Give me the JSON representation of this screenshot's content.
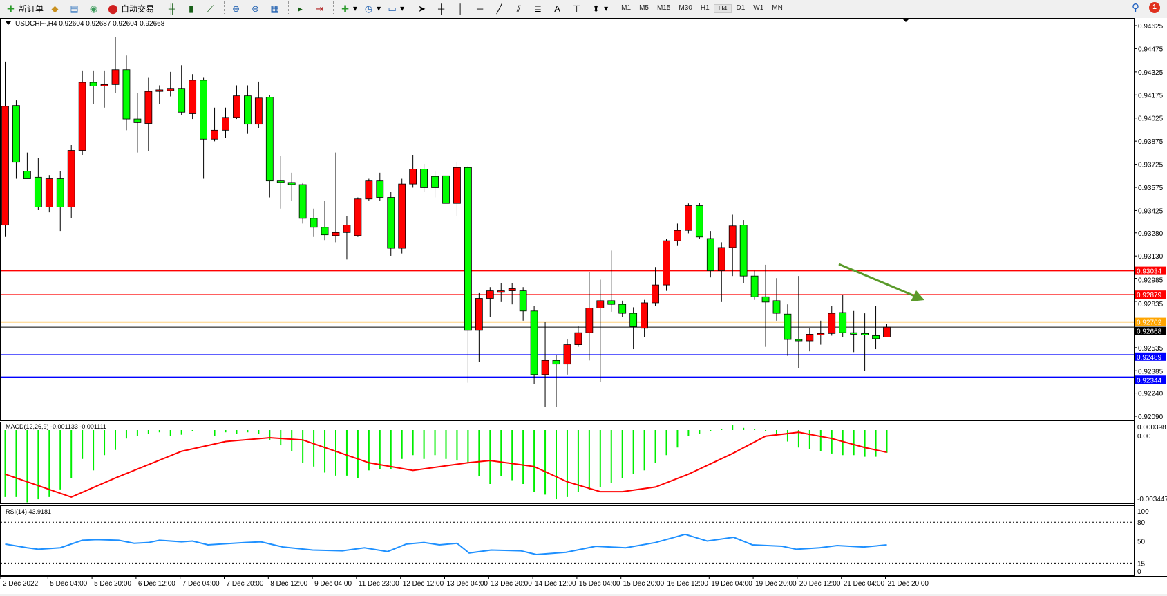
{
  "toolbar": {
    "new_order": "新订单",
    "auto_trading": "自动交易",
    "timeframes": [
      "M1",
      "M5",
      "M15",
      "M30",
      "H1",
      "H4",
      "D1",
      "W1",
      "MN"
    ],
    "active_timeframe": "H4",
    "notification_count": "1",
    "icons": [
      "new-order-icon",
      "market-watch-icon",
      "navigator-icon",
      "signal-icon",
      "auto-trading-icon",
      "bar-chart-icon",
      "candlestick-icon",
      "line-chart-icon",
      "zoom-in-icon",
      "zoom-out-icon",
      "tile-windows-icon",
      "auto-scroll-icon",
      "chart-shift-icon",
      "indicators-icon",
      "periods-icon",
      "templates-icon",
      "cursor-icon",
      "crosshair-icon",
      "vertical-line-icon",
      "horizontal-line-icon",
      "trendline-icon",
      "equidistant-channel-icon",
      "fibonacci-icon",
      "text-icon",
      "text-label-icon",
      "arrows-icon",
      "search-icon",
      "chat-icon"
    ]
  },
  "chart_data": {
    "type": "candlestick",
    "symbol_header": "USDCHF-,H4  0.92604 0.92687 0.92604 0.92668",
    "colors": {
      "bull": "#ff0000",
      "bear": "#00ff00",
      "macd_hist": "#00ee00",
      "signal": "#ff0000",
      "rsi": "#1e90ff"
    },
    "ylim": [
      0.9204,
      0.9468
    ],
    "price_ticks": [
      "0.94625",
      "0.94475",
      "0.94325",
      "0.94175",
      "0.94025",
      "0.93875",
      "0.93725",
      "0.93575",
      "0.93425",
      "0.93280",
      "0.93130",
      "0.92985",
      "0.92835",
      "0.92535",
      "0.92385",
      "0.92240",
      "0.92090"
    ],
    "time_labels": [
      "2 Dec 2022",
      "5 Dec 04:00",
      "5 Dec 20:00",
      "6 Dec 12:00",
      "7 Dec 04:00",
      "7 Dec 20:00",
      "8 Dec 12:00",
      "9 Dec 04:00",
      "11 Dec 23:00",
      "12 Dec 12:00",
      "13 Dec 04:00",
      "13 Dec 20:00",
      "14 Dec 12:00",
      "15 Dec 04:00",
      "15 Dec 20:00",
      "16 Dec 12:00",
      "19 Dec 04:00",
      "19 Dec 20:00",
      "20 Dec 12:00",
      "21 Dec 04:00",
      "21 Dec 20:00"
    ],
    "ohlc": [
      [
        0.9333,
        0.94392,
        0.93253,
        0.94101
      ],
      [
        0.94106,
        0.9414,
        0.93631,
        0.93738
      ],
      [
        0.9368,
        0.93801,
        0.93631,
        0.93631
      ],
      [
        0.93641,
        0.93767,
        0.93427,
        0.93447
      ],
      [
        0.93447,
        0.93655,
        0.93413,
        0.93631
      ],
      [
        0.93631,
        0.9368,
        0.93292,
        0.93447
      ],
      [
        0.93447,
        0.93849,
        0.93374,
        0.93815
      ],
      [
        0.93815,
        0.94334,
        0.93786,
        0.94257
      ],
      [
        0.94257,
        0.94334,
        0.94116,
        0.94232
      ],
      [
        0.94232,
        0.94334,
        0.94092,
        0.94242
      ],
      [
        0.94242,
        0.94553,
        0.94189,
        0.94339
      ],
      [
        0.94339,
        0.94431,
        0.93946,
        0.94019
      ],
      [
        0.94019,
        0.94189,
        0.93801,
        0.93995
      ],
      [
        0.9399,
        0.94286,
        0.9381,
        0.94198
      ],
      [
        0.94198,
        0.94237,
        0.94116,
        0.94208
      ],
      [
        0.94203,
        0.94325,
        0.94165,
        0.94218
      ],
      [
        0.94218,
        0.94368,
        0.94043,
        0.94063
      ],
      [
        0.94053,
        0.9431,
        0.94019,
        0.94271
      ],
      [
        0.94271,
        0.94286,
        0.93631,
        0.93888
      ],
      [
        0.93888,
        0.94092,
        0.93874,
        0.93946
      ],
      [
        0.93946,
        0.94092,
        0.93898,
        0.94029
      ],
      [
        0.94029,
        0.94237,
        0.94019,
        0.94169
      ],
      [
        0.94169,
        0.94237,
        0.93922,
        0.93985
      ],
      [
        0.93985,
        0.94262,
        0.93961,
        0.94155
      ],
      [
        0.9416,
        0.94174,
        0.9351,
        0.93617
      ],
      [
        0.93617,
        0.93777,
        0.93437,
        0.93607
      ],
      [
        0.93607,
        0.9367,
        0.93486,
        0.93593
      ],
      [
        0.93593,
        0.93607,
        0.9334,
        0.93374
      ],
      [
        0.93374,
        0.93437,
        0.93253,
        0.93316
      ],
      [
        0.93316,
        0.93486,
        0.93233,
        0.93267
      ],
      [
        0.93262,
        0.93801,
        0.93219,
        0.93282
      ],
      [
        0.93282,
        0.93389,
        0.93107,
        0.9333
      ],
      [
        0.93262,
        0.9351,
        0.93253,
        0.935
      ],
      [
        0.935,
        0.93631,
        0.93486,
        0.93617
      ],
      [
        0.93617,
        0.9367,
        0.93486,
        0.9351
      ],
      [
        0.9351,
        0.93544,
        0.93131,
        0.9318
      ],
      [
        0.9318,
        0.93631,
        0.93146,
        0.93597
      ],
      [
        0.93597,
        0.93786,
        0.93573,
        0.93694
      ],
      [
        0.93694,
        0.93728,
        0.93544,
        0.93573
      ],
      [
        0.93646,
        0.9368,
        0.9351,
        0.93573
      ],
      [
        0.9365,
        0.93675,
        0.93389,
        0.93471
      ],
      [
        0.93471,
        0.93738,
        0.93389,
        0.93704
      ],
      [
        0.93704,
        0.93713,
        0.92307,
        0.92647
      ],
      [
        0.92647,
        0.92889,
        0.92443,
        0.92855
      ],
      [
        0.92855,
        0.92928,
        0.92734,
        0.92904
      ],
      [
        0.92894,
        0.92952,
        0.92831,
        0.92904
      ],
      [
        0.92904,
        0.92952,
        0.92816,
        0.92918
      ],
      [
        0.92904,
        0.92928,
        0.9271,
        0.92773
      ],
      [
        0.92773,
        0.92807,
        0.92297,
        0.9236
      ],
      [
        0.9236,
        0.927,
        0.92152,
        0.92452
      ],
      [
        0.92452,
        0.92486,
        0.92152,
        0.92428
      ],
      [
        0.92428,
        0.92588,
        0.9236,
        0.92554
      ],
      [
        0.92554,
        0.92676,
        0.9254,
        0.92632
      ],
      [
        0.92632,
        0.93025,
        0.92452,
        0.92792
      ],
      [
        0.92792,
        0.92976,
        0.92312,
        0.9284
      ],
      [
        0.9284,
        0.93165,
        0.92768,
        0.92816
      ],
      [
        0.92816,
        0.9284,
        0.92734,
        0.92758
      ],
      [
        0.92758,
        0.92797,
        0.92525,
        0.92671
      ],
      [
        0.92661,
        0.92845,
        0.92603,
        0.92826
      ],
      [
        0.92826,
        0.93058,
        0.92807,
        0.92942
      ],
      [
        0.92942,
        0.93243,
        0.92904,
        0.93229
      ],
      [
        0.93229,
        0.9334,
        0.93195,
        0.93296
      ],
      [
        0.93296,
        0.93471,
        0.93277,
        0.93456
      ],
      [
        0.93456,
        0.93476,
        0.93243,
        0.93253
      ],
      [
        0.93243,
        0.93292,
        0.92991,
        0.93034
      ],
      [
        0.93034,
        0.93219,
        0.92831,
        0.93185
      ],
      [
        0.93185,
        0.93398,
        0.93,
        0.93325
      ],
      [
        0.9333,
        0.93364,
        0.92952,
        0.93
      ],
      [
        0.93,
        0.93034,
        0.92845,
        0.92865
      ],
      [
        0.92865,
        0.93073,
        0.9254,
        0.92831
      ],
      [
        0.9284,
        0.92986,
        0.9271,
        0.92758
      ],
      [
        0.92753,
        0.92816,
        0.92482,
        0.92588
      ],
      [
        0.92588,
        0.93,
        0.92404,
        0.92579
      ],
      [
        0.92579,
        0.92661,
        0.92511,
        0.92622
      ],
      [
        0.92617,
        0.9271,
        0.92554,
        0.92627
      ],
      [
        0.92627,
        0.92807,
        0.92613,
        0.92758
      ],
      [
        0.92763,
        0.92879,
        0.92603,
        0.92632
      ],
      [
        0.92632,
        0.92773,
        0.92506,
        0.92622
      ],
      [
        0.92627,
        0.92758,
        0.92385,
        0.92617
      ],
      [
        0.92613,
        0.92807,
        0.92525,
        0.92593
      ],
      [
        0.92604,
        0.92687,
        0.92604,
        0.92668
      ]
    ],
    "hlines": [
      {
        "price": 0.93034,
        "label": "0.93034",
        "color": "#ff0000"
      },
      {
        "price": 0.92879,
        "label": "0.92879",
        "color": "#ff0000"
      },
      {
        "price": 0.92702,
        "label": "0.92702",
        "color": "#ffa500"
      },
      {
        "price": 0.92668,
        "label": "0.92668",
        "color": "#000000"
      },
      {
        "price": 0.92489,
        "label": "0.92489",
        "color": "#0000ff"
      },
      {
        "price": 0.92344,
        "label": "0.92344",
        "color": "#0000ff"
      }
    ],
    "annotation": {
      "type": "arrow",
      "color": "#5a9a2a"
    },
    "macd": {
      "label": "MACD(12,26,9) -0.001133 -0.001111",
      "ticks": [
        "0.000398",
        "0.00",
        "-0.003447"
      ],
      "ylim": [
        -0.003447,
        0.000398
      ],
      "histogram": [
        -0.00334,
        -0.00334,
        -0.0036,
        -0.00345,
        -0.00334,
        -0.00296,
        -0.00239,
        -0.00144,
        -0.00201,
        -0.00125,
        -0.00099,
        -0.00042,
        -0.0003,
        -0.00019,
        -0.00011,
        -0.0003,
        -0.00023,
        -4e-05,
        0.0,
        -0.0003,
        -0.00011,
        -0.00019,
        -0.00011,
        -0.00019,
        -0.00049,
        -0.00076,
        -0.00106,
        -0.00163,
        -0.00182,
        -0.00212,
        -0.00227,
        -0.00227,
        -0.00239,
        -0.00201,
        -0.00193,
        -0.00193,
        -0.00144,
        -0.00125,
        -0.00144,
        -0.00125,
        -0.00144,
        -0.00152,
        -0.00163,
        -0.00231,
        -0.00269,
        -0.00231,
        -0.0025,
        -0.00269,
        -0.00307,
        -0.00322,
        -0.00345,
        -0.00334,
        -0.00307,
        -0.00299,
        -0.00284,
        -0.00262,
        -0.00239,
        -0.0022,
        -0.00201,
        -0.00163,
        -0.00125,
        -0.00087,
        -0.0003,
        -0.00019,
        -4e-05,
        4e-05,
        0.00027,
        0.00011,
        4e-05,
        -4e-05,
        -0.0003,
        -0.00057,
        -0.00087,
        -0.00095,
        -0.00106,
        -0.00117,
        -0.00125,
        -0.00125,
        -0.00133,
        -0.00133,
        -0.00113
      ],
      "signal": [
        [
          0,
          -0.0022
        ],
        [
          5,
          -0.00315
        ],
        [
          6,
          -0.00334
        ],
        [
          10,
          -0.00239
        ],
        [
          16,
          -0.00106
        ],
        [
          20,
          -0.00057
        ],
        [
          24,
          -0.00038
        ],
        [
          27,
          -0.00049
        ],
        [
          33,
          -0.00163
        ],
        [
          37,
          -0.00201
        ],
        [
          42,
          -0.00163
        ],
        [
          44,
          -0.00152
        ],
        [
          48,
          -0.00182
        ],
        [
          51,
          -0.00258
        ],
        [
          54,
          -0.00307
        ],
        [
          56,
          -0.00307
        ],
        [
          59,
          -0.00284
        ],
        [
          62,
          -0.0022
        ],
        [
          66,
          -0.00117
        ],
        [
          69,
          -0.0003
        ],
        [
          72,
          -0.00011
        ],
        [
          75,
          -0.00042
        ],
        [
          78,
          -0.00087
        ],
        [
          80,
          -0.00111
        ]
      ]
    },
    "rsi": {
      "label": "RSI(14) 43.9181",
      "ticks": [
        "100",
        "80",
        "50",
        "15",
        "0"
      ],
      "levels": [
        80,
        50,
        15
      ],
      "ylim": [
        0,
        100
      ],
      "values": [
        [
          0,
          45.2
        ],
        [
          2,
          39.3
        ],
        [
          3,
          36.9
        ],
        [
          5,
          39.3
        ],
        [
          7,
          51.2
        ],
        [
          8.3,
          52.4
        ],
        [
          10.3,
          51.2
        ],
        [
          11.7,
          46.4
        ],
        [
          13,
          47.6
        ],
        [
          14,
          51.2
        ],
        [
          16,
          48.8
        ],
        [
          17,
          50.0
        ],
        [
          18.4,
          44.0
        ],
        [
          21.8,
          47.6
        ],
        [
          23.2,
          48.8
        ],
        [
          25.2,
          40.5
        ],
        [
          27.9,
          35.7
        ],
        [
          30.6,
          34.5
        ],
        [
          32.6,
          39.3
        ],
        [
          34.7,
          33.3
        ],
        [
          36.4,
          45.2
        ],
        [
          38,
          47.6
        ],
        [
          39.4,
          44.0
        ],
        [
          41,
          46.4
        ],
        [
          42.1,
          31.0
        ],
        [
          44.1,
          35.7
        ],
        [
          46.8,
          34.5
        ],
        [
          48.2,
          28.6
        ],
        [
          50.9,
          32.1
        ],
        [
          53.6,
          41.7
        ],
        [
          56.3,
          39.3
        ],
        [
          59,
          47.6
        ],
        [
          61.7,
          60.7
        ],
        [
          63.7,
          50.0
        ],
        [
          66.1,
          56.0
        ],
        [
          67.8,
          44.0
        ],
        [
          70.5,
          41.7
        ],
        [
          71.8,
          36.9
        ],
        [
          73.9,
          39.3
        ],
        [
          75.5,
          42.9
        ],
        [
          77.9,
          40.5
        ],
        [
          80,
          43.9
        ]
      ]
    }
  }
}
